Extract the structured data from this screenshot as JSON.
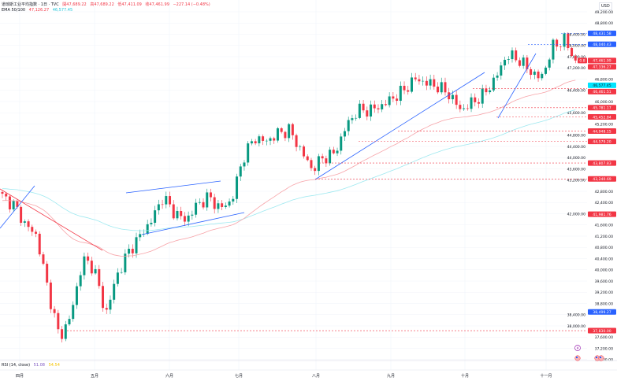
{
  "header": {
    "symbol": "道琼斯工业平均指数 · 1日 · TVC",
    "open": "開47,689.22",
    "high": "高47,689.22",
    "low": "低47,411.09",
    "close": "收47,461.99",
    "change": "−227.14 (−0.48%)"
  },
  "ema": {
    "label": "EMA 50/100",
    "value1": "47,126.27",
    "value2": "46,577.45"
  },
  "rsi": {
    "label": "RSI (14, close)",
    "value1": "51.08",
    "value2": "54.54"
  },
  "currency": "USD",
  "colors": {
    "up": "#089981",
    "down": "#f23645",
    "ema50": "#f7a3a8",
    "ema100": "#9ee9f0",
    "trendline_blue": "#2962ff",
    "trendline_red": "#f23645"
  },
  "chart_data": {
    "type": "candlestick",
    "x_ticks": [
      "四月",
      "五月",
      "六月",
      "七月",
      "八月",
      "九月",
      "十月",
      "十一月"
    ],
    "y_ticks": [
      "49,200.00",
      "48,800.00",
      "48,400.00",
      "48,000.00",
      "47,600.00",
      "47,200.00",
      "46,800.00",
      "46,400.00",
      "46,000.00",
      "45,600.00",
      "45,200.00",
      "44,800.00",
      "44,400.00",
      "44,000.00",
      "43,600.00",
      "43,200.00",
      "42,800.00",
      "42,400.00",
      "42,000.00",
      "41,600.00",
      "41,200.00",
      "40,800.00",
      "40,400.00",
      "40,000.00",
      "39,600.00",
      "39,200.00",
      "38,800.00",
      "38,400.00",
      "38,000.00",
      "37,600.00",
      "37,200.00",
      "36,800.00"
    ],
    "ylim": [
      36800,
      49200
    ],
    "approx_closes": [
      42604,
      42320,
      41620,
      41200,
      39240,
      37550,
      38390,
      40360,
      40080,
      38390,
      39800,
      40640,
      41200,
      41760,
      42600,
      42040,
      41760,
      42320,
      42600,
      42180,
      42460,
      44000,
      44710,
      44570,
      44850,
      44990,
      44290,
      43590,
      44000,
      44150,
      45130,
      45690,
      45690,
      45830,
      46110,
      46390,
      46810,
      46670,
      46530,
      46250,
      45690,
      45970,
      46250,
      46810,
      47660,
      47520,
      47100,
      46810,
      47940,
      48220,
      47462
    ],
    "price_tags": [
      {
        "value": "48,431.58",
        "color": "#2962ff",
        "price": 48431.58
      },
      {
        "value": "48,040.43",
        "color": "#2962ff",
        "price": 48040.43
      },
      {
        "value": "47,461.99",
        "color": "#f23645",
        "price": 47461.99,
        "badge": "0.8"
      },
      {
        "value": "47,336.27",
        "color": "#f23645",
        "price": 47336.27
      },
      {
        "value": "46,577.45",
        "color": "#00e5ff",
        "price": 46577.45,
        "dark_text": true
      },
      {
        "value": "46,461.51",
        "color": "#f23645",
        "price": 46461.51
      },
      {
        "value": "45,781.17",
        "color": "#f23645",
        "price": 45781.17
      },
      {
        "value": "45,452.84",
        "color": "#f23645",
        "price": 45452.84
      },
      {
        "value": "44,948.15",
        "color": "#f23645",
        "price": 44948.15
      },
      {
        "value": "44,579.20",
        "color": "#f23645",
        "price": 44579.2
      },
      {
        "value": "43,807.83",
        "color": "#f23645",
        "price": 43807.83
      },
      {
        "value": "43,240.69",
        "color": "#f23645",
        "price": 43240.69
      },
      {
        "value": "41,981.76",
        "color": "#f23645",
        "price": 41981.76
      },
      {
        "value": "38,499.27",
        "color": "#2962ff",
        "price": 38499.27
      },
      {
        "value": "37,830.00",
        "color": "#f23645",
        "price": 37830.0
      }
    ]
  },
  "icons": [
    "lightning-icon",
    "us-flag-icon",
    "us-flag-icon"
  ]
}
